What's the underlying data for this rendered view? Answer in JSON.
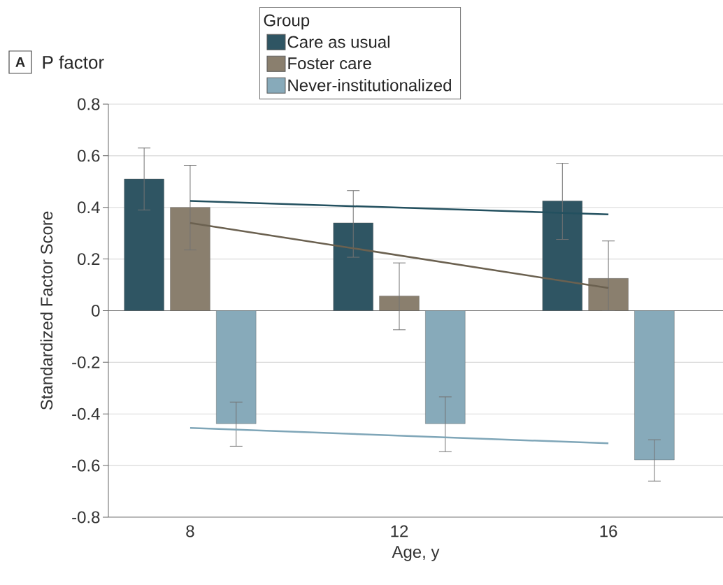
{
  "chart_data": {
    "type": "bar",
    "title": "P factor",
    "annotations": [
      "A"
    ],
    "xlabel": "Age, y",
    "ylabel": "Standardized Factor Score",
    "legend_title": "Group",
    "legend": "top",
    "grid": "y",
    "categories": [
      "8",
      "12",
      "16"
    ],
    "ylim": [
      -0.8,
      0.8
    ],
    "yticks": [
      -0.8,
      -0.6,
      -0.4,
      -0.2,
      0,
      0.2,
      0.4,
      0.6,
      0.8
    ],
    "series": [
      {
        "name": "Care as usual",
        "color": "#2f5563",
        "values": [
          0.51,
          0.34,
          0.425
        ],
        "errors": [
          [
            0.39,
            0.63
          ],
          [
            0.207,
            0.465
          ],
          [
            0.276,
            0.571
          ]
        ]
      },
      {
        "name": "Foster care",
        "color": "#8a7f6e",
        "values": [
          0.4,
          0.057,
          0.125
        ],
        "errors": [
          [
            0.235,
            0.563
          ],
          [
            -0.074,
            0.185
          ],
          [
            0.0,
            0.27
          ]
        ]
      },
      {
        "name": "Never-institutionalized",
        "color": "#87aaba",
        "values": [
          -0.438,
          -0.438,
          -0.578
        ],
        "errors": [
          [
            -0.525,
            -0.354
          ],
          [
            -0.546,
            -0.334
          ],
          [
            -0.66,
            -0.5
          ]
        ]
      },
      {
        "type": "line",
        "color": "#23505f",
        "x": [
          "8",
          "16"
        ],
        "values": [
          0.425,
          0.373
        ]
      },
      {
        "type": "line",
        "color": "#6b6150",
        "x": [
          "8",
          "16"
        ],
        "values": [
          0.34,
          0.088
        ]
      },
      {
        "type": "line",
        "color": "#7fa6b8",
        "x": [
          "8",
          "16"
        ],
        "values": [
          -0.454,
          -0.514
        ]
      }
    ]
  }
}
